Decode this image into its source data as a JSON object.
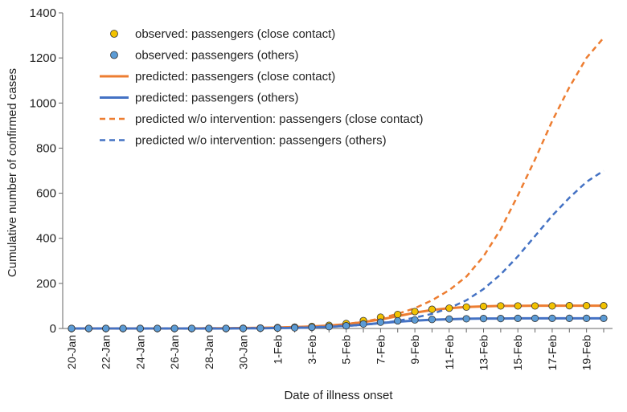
{
  "chart_data": {
    "type": "line",
    "xlabel": "Date of illness onset",
    "ylabel": "Cumulative number of confirmed cases",
    "ylim": [
      0,
      1400
    ],
    "yticks": [
      0,
      200,
      400,
      600,
      800,
      1000,
      1200,
      1400
    ],
    "x": [
      "20-Jan",
      "21-Jan",
      "22-Jan",
      "23-Jan",
      "24-Jan",
      "25-Jan",
      "26-Jan",
      "27-Jan",
      "28-Jan",
      "29-Jan",
      "30-Jan",
      "31-Jan",
      "1-Feb",
      "2-Feb",
      "3-Feb",
      "4-Feb",
      "5-Feb",
      "6-Feb",
      "7-Feb",
      "8-Feb",
      "9-Feb",
      "10-Feb",
      "11-Feb",
      "12-Feb",
      "13-Feb",
      "14-Feb",
      "15-Feb",
      "16-Feb",
      "17-Feb",
      "18-Feb",
      "19-Feb",
      "20-Feb"
    ],
    "xtick_labels": [
      "20-Jan",
      "22-Jan",
      "24-Jan",
      "26-Jan",
      "28-Jan",
      "30-Jan",
      "1-Feb",
      "3-Feb",
      "5-Feb",
      "7-Feb",
      "9-Feb",
      "11-Feb",
      "13-Feb",
      "15-Feb",
      "17-Feb",
      "19-Feb"
    ],
    "legend_position": "top-left",
    "series": [
      {
        "name": "observed: passengers (close contact)",
        "style": "marker",
        "color": "#f2c200",
        "values": [
          0,
          0,
          0,
          0,
          0,
          0,
          0,
          0,
          0,
          0,
          1,
          2,
          4,
          6,
          9,
          14,
          22,
          35,
          50,
          62,
          75,
          85,
          90,
          95,
          98,
          100,
          100,
          100,
          100,
          101,
          101,
          101
        ]
      },
      {
        "name": "observed: passengers (others)",
        "style": "marker",
        "color": "#5b9bd5",
        "values": [
          0,
          0,
          0,
          0,
          0,
          0,
          0,
          0,
          0,
          0,
          0,
          1,
          2,
          3,
          5,
          8,
          12,
          20,
          28,
          34,
          38,
          40,
          42,
          43,
          44,
          44,
          45,
          45,
          45,
          45,
          45,
          45
        ]
      },
      {
        "name": "predicted: passengers (close contact)",
        "style": "solid",
        "color": "#ed7d31",
        "values": [
          0,
          0,
          0,
          0,
          0,
          0,
          0,
          0,
          1,
          1,
          2,
          3,
          4,
          6,
          9,
          13,
          19,
          28,
          40,
          55,
          70,
          82,
          90,
          95,
          98,
          100,
          100,
          101,
          101,
          101,
          101,
          101
        ]
      },
      {
        "name": "predicted: passengers (others)",
        "style": "solid",
        "color": "#4472c4",
        "values": [
          0,
          0,
          0,
          0,
          0,
          0,
          0,
          0,
          0,
          0,
          1,
          1,
          2,
          3,
          5,
          8,
          12,
          17,
          24,
          30,
          35,
          39,
          41,
          43,
          44,
          44,
          45,
          45,
          45,
          45,
          45,
          45
        ]
      },
      {
        "name": "predicted w/o intervention: passengers (close contact)",
        "style": "dashed",
        "color": "#ed7d31",
        "values": [
          0,
          0,
          0,
          0,
          0,
          0,
          0,
          0,
          1,
          1,
          2,
          3,
          4,
          6,
          9,
          13,
          20,
          30,
          45,
          65,
          90,
          125,
          170,
          230,
          320,
          440,
          590,
          750,
          920,
          1070,
          1200,
          1290
        ]
      },
      {
        "name": "predicted w/o intervention: passengers (others)",
        "style": "dashed",
        "color": "#4472c4",
        "values": [
          0,
          0,
          0,
          0,
          0,
          0,
          0,
          0,
          0,
          0,
          1,
          1,
          2,
          3,
          5,
          8,
          11,
          16,
          24,
          34,
          48,
          65,
          90,
          125,
          175,
          240,
          320,
          410,
          500,
          580,
          650,
          700
        ]
      }
    ]
  }
}
